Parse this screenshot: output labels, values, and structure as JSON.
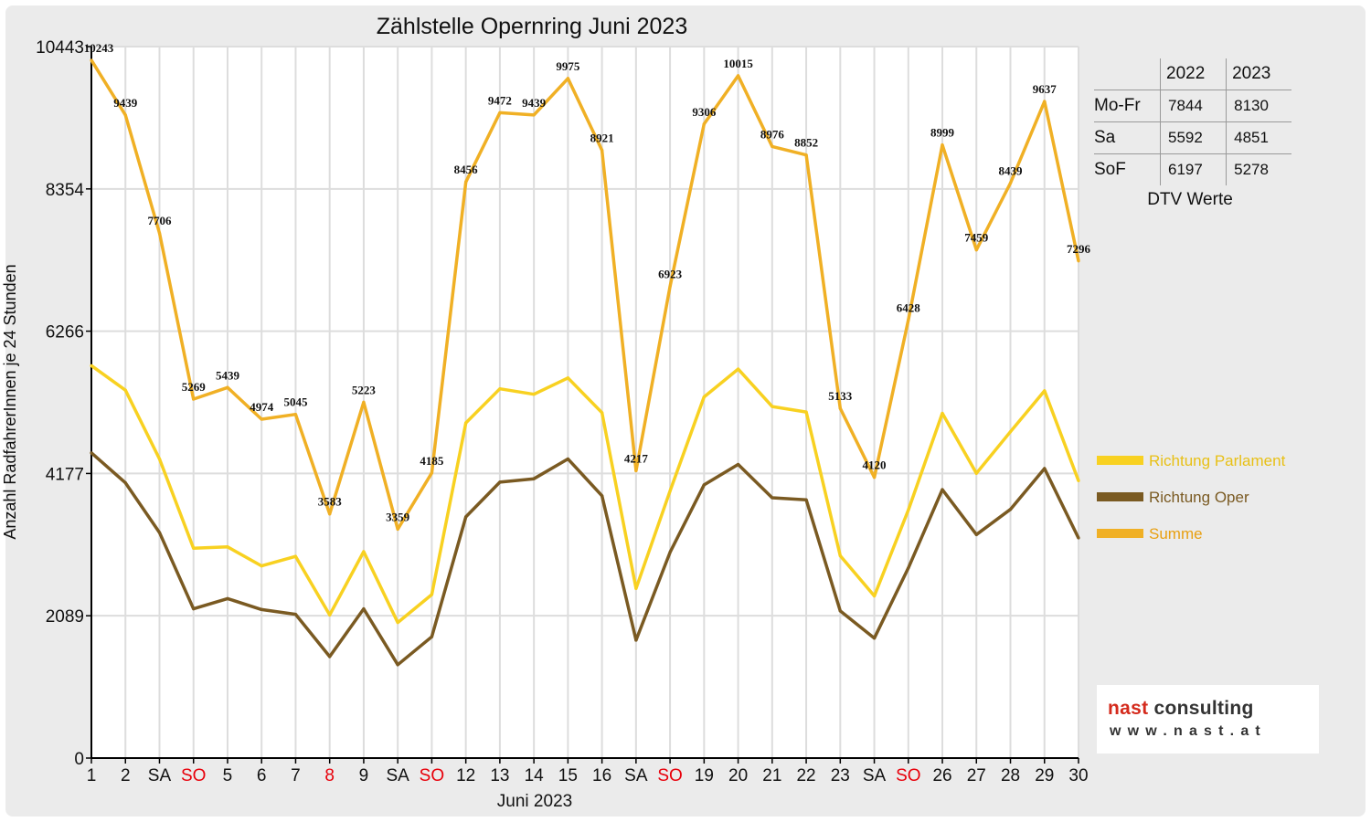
{
  "chart_data": {
    "type": "line",
    "title": "Zählstelle Opernring Juni 2023",
    "xlabel": "Juni 2023",
    "ylabel": "Anzahl RadfahrerInnen je 24 Stunden",
    "ylim": [
      0,
      10443
    ],
    "yticks": [
      0,
      2089,
      4177,
      6266,
      8354,
      10443
    ],
    "grid": true,
    "legend_position": "right",
    "categories": [
      "1",
      "2",
      "SA",
      "SO",
      "5",
      "6",
      "7",
      "8",
      "9",
      "SA",
      "SO",
      "12",
      "13",
      "14",
      "15",
      "16",
      "SA",
      "SO",
      "19",
      "20",
      "21",
      "22",
      "23",
      "SA",
      "SO",
      "26",
      "27",
      "28",
      "29",
      "30"
    ],
    "highlighted_categories": [
      3,
      7,
      10,
      17,
      24
    ],
    "series": [
      {
        "name": "Richtung Parlament",
        "color": "#f8d121",
        "values": [
          5760,
          5400,
          4390,
          3080,
          3100,
          2820,
          2960,
          2100,
          3030,
          1990,
          2400,
          4920,
          5420,
          5340,
          5580,
          5070,
          2490,
          3920,
          5300,
          5710,
          5160,
          5080,
          2970,
          2380,
          3640,
          5060,
          4180,
          4790,
          5390,
          4070
        ]
      },
      {
        "name": "Richtung Oper",
        "color": "#7a5a22",
        "values": [
          4480,
          4040,
          3310,
          2190,
          2340,
          2180,
          2110,
          1490,
          2190,
          1370,
          1780,
          3540,
          4050,
          4100,
          4390,
          3850,
          1730,
          3020,
          4010,
          4310,
          3820,
          3790,
          2160,
          1760,
          2790,
          3940,
          3280,
          3650,
          4250,
          3230
        ]
      },
      {
        "name": "Summe",
        "color": "#f0b025",
        "values": [
          10243,
          9439,
          7706,
          5269,
          5439,
          4974,
          5045,
          3583,
          5223,
          3359,
          4185,
          8456,
          9472,
          9439,
          9975,
          8921,
          4217,
          6923,
          9306,
          10015,
          8976,
          8852,
          5133,
          4120,
          6428,
          8999,
          7459,
          8439,
          9637,
          7296
        ]
      }
    ]
  },
  "dtv_table": {
    "headers": [
      "2022",
      "2023"
    ],
    "rows": [
      {
        "label": "Mo-Fr",
        "v2022": "7844",
        "v2023": "8130"
      },
      {
        "label": "Sa",
        "v2022": "5592",
        "v2023": "4851"
      },
      {
        "label": "SoF",
        "v2022": "6197",
        "v2023": "5278"
      }
    ],
    "caption": "DTV Werte"
  },
  "logo": {
    "name_red": "nast",
    "name_rest": " consulting",
    "url": "www.nast.at"
  },
  "colors": {
    "frame_background": "#ebebeb",
    "plot_background": "#ffffff",
    "grid": "#dddddd",
    "holiday_label": "#e8000b",
    "text": "#111111"
  }
}
